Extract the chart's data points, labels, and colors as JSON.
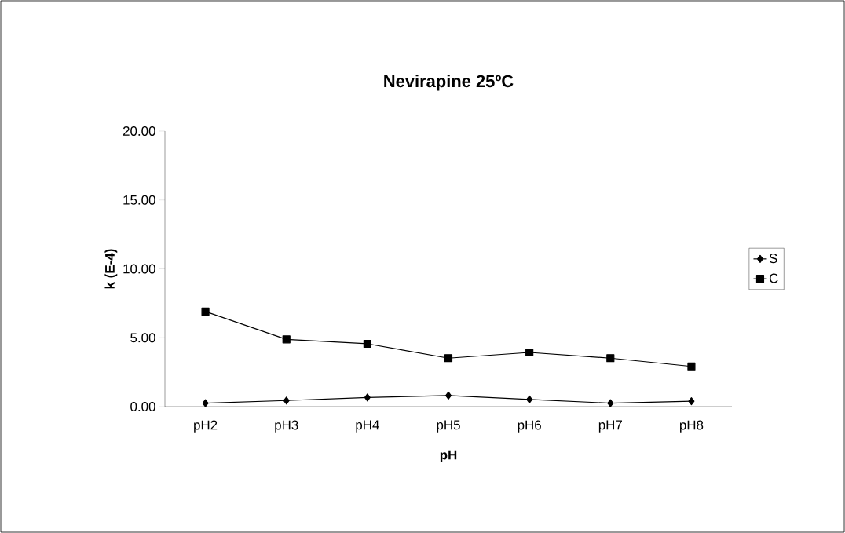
{
  "chart_data": {
    "type": "line",
    "title": "Nevirapine 25ºC",
    "xlabel": "pH",
    "ylabel": "k (E-4)",
    "categories": [
      "pH2",
      "pH3",
      "pH4",
      "pH5",
      "pH6",
      "pH7",
      "pH8"
    ],
    "series": [
      {
        "name": "S",
        "color": "#000000",
        "marker": "diamond",
        "values": [
          0.25,
          0.44,
          0.66,
          0.8,
          0.52,
          0.25,
          0.39
        ]
      },
      {
        "name": "C",
        "color": "#000000",
        "marker": "square",
        "values": [
          6.9,
          4.88,
          4.56,
          3.52,
          3.93,
          3.52,
          2.92
        ]
      }
    ],
    "ylim": [
      0,
      20
    ],
    "yticks": [
      {
        "value": 0,
        "label": "0.00"
      },
      {
        "value": 5,
        "label": "5.00"
      },
      {
        "value": 10,
        "label": "10.00"
      },
      {
        "value": 15,
        "label": "15.00"
      },
      {
        "value": 20,
        "label": "20.00"
      }
    ],
    "grid": false,
    "legend": "right",
    "line_style": "solid"
  }
}
